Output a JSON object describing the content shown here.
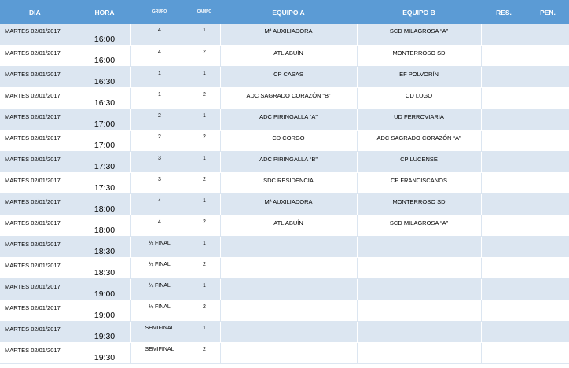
{
  "header": {
    "dia": "DIA",
    "hora": "HORA",
    "grupo": "GRUPO",
    "campo": "CAMPO",
    "equipo_a": "EQUIPO A",
    "equipo_b": "EQUIPO B",
    "res": "RES.",
    "pen": "PEN."
  },
  "colors": {
    "header_bg": "#5b9bd5",
    "band_bg": "#dce6f1"
  },
  "rows": [
    {
      "dia": "MARTES 02/01/2017",
      "hora": "16:00",
      "grupo": "4",
      "campo": "1",
      "equipo_a": "Mª AUXILIADORA",
      "equipo_b": "SCD MILAGROSA “A”",
      "res": "",
      "pen": ""
    },
    {
      "dia": "MARTES 02/01/2017",
      "hora": "16:00",
      "grupo": "4",
      "campo": "2",
      "equipo_a": "ATL ABUÍN",
      "equipo_b": "MONTERROSO SD",
      "res": "",
      "pen": ""
    },
    {
      "dia": "MARTES 02/01/2017",
      "hora": "16:30",
      "grupo": "1",
      "campo": "1",
      "equipo_a": "CP CASAS",
      "equipo_b": "EF POLVORÍN",
      "res": "",
      "pen": ""
    },
    {
      "dia": "MARTES 02/01/2017",
      "hora": "16:30",
      "grupo": "1",
      "campo": "2",
      "equipo_a": "ADC SAGRADO CORAZÓN “B”",
      "equipo_b": "CD LUGO",
      "res": "",
      "pen": ""
    },
    {
      "dia": "MARTES 02/01/2017",
      "hora": "17:00",
      "grupo": "2",
      "campo": "1",
      "equipo_a": "ADC PIRINGALLA “A”",
      "equipo_b": "UD FERROVIARIA",
      "res": "",
      "pen": ""
    },
    {
      "dia": "MARTES 02/01/2017",
      "hora": "17:00",
      "grupo": "2",
      "campo": "2",
      "equipo_a": "CD CORGO",
      "equipo_b": "ADC SAGRADO CORAZÓN “A”",
      "res": "",
      "pen": ""
    },
    {
      "dia": "MARTES 02/01/2017",
      "hora": "17:30",
      "grupo": "3",
      "campo": "1",
      "equipo_a": "ADC PIRINGALLA “B”",
      "equipo_b": "CP LUCENSE",
      "res": "",
      "pen": ""
    },
    {
      "dia": "MARTES 02/01/2017",
      "hora": "17:30",
      "grupo": "3",
      "campo": "2",
      "equipo_a": "SDC RESIDENCIA",
      "equipo_b": "CP FRANCISCANOS",
      "res": "",
      "pen": ""
    },
    {
      "dia": "MARTES 02/01/2017",
      "hora": "18:00",
      "grupo": "4",
      "campo": "1",
      "equipo_a": "Mª AUXILIADORA",
      "equipo_b": "MONTERROSO SD",
      "res": "",
      "pen": ""
    },
    {
      "dia": "MARTES 02/01/2017",
      "hora": "18:00",
      "grupo": "4",
      "campo": "2",
      "equipo_a": "ATL ABUÍN",
      "equipo_b": "SCD MILAGROSA “A”",
      "res": "",
      "pen": ""
    },
    {
      "dia": "MARTES 02/01/2017",
      "hora": "18:30",
      "grupo": "¼ FINAL",
      "campo": "1",
      "equipo_a": "",
      "equipo_b": "",
      "res": "",
      "pen": ""
    },
    {
      "dia": "MARTES 02/01/2017",
      "hora": "18:30",
      "grupo": "¼ FINAL",
      "campo": "2",
      "equipo_a": "",
      "equipo_b": "",
      "res": "",
      "pen": ""
    },
    {
      "dia": "MARTES 02/01/2017",
      "hora": "19:00",
      "grupo": "¼ FINAL",
      "campo": "1",
      "equipo_a": "",
      "equipo_b": "",
      "res": "",
      "pen": ""
    },
    {
      "dia": "MARTES 02/01/2017",
      "hora": "19:00",
      "grupo": "¼ FINAL",
      "campo": "2",
      "equipo_a": "",
      "equipo_b": "",
      "res": "",
      "pen": ""
    },
    {
      "dia": "MARTES 02/01/2017",
      "hora": "19:30",
      "grupo": "SEMIFINAL",
      "campo": "1",
      "equipo_a": "",
      "equipo_b": "",
      "res": "",
      "pen": ""
    },
    {
      "dia": "MARTES 02/01/2017",
      "hora": "19:30",
      "grupo": "SEMIFINAL",
      "campo": "2",
      "equipo_a": "",
      "equipo_b": "",
      "res": "",
      "pen": ""
    }
  ]
}
